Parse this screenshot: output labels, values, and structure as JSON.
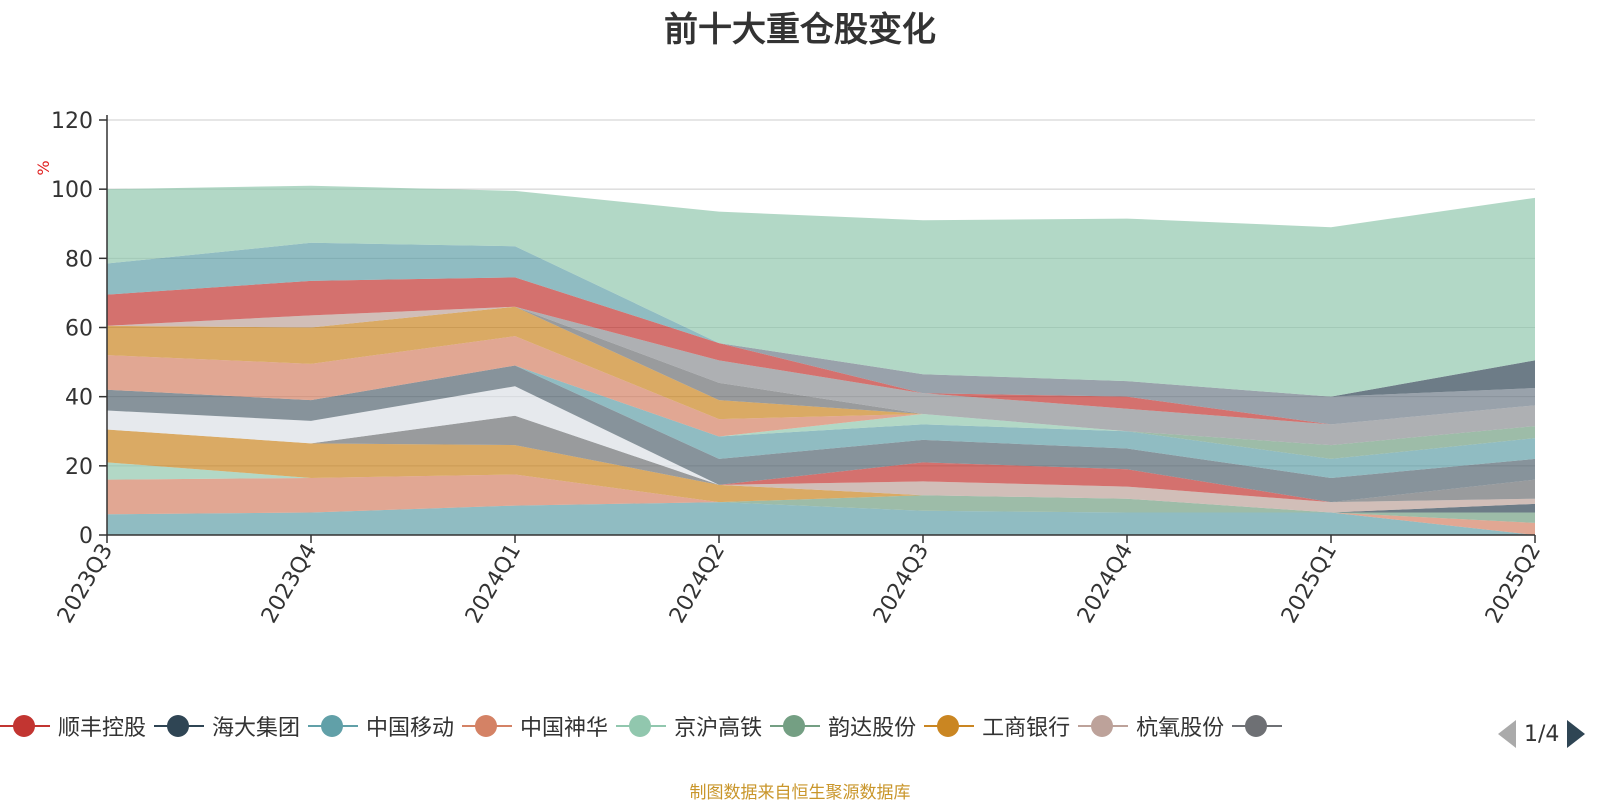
{
  "title": "前十大重仓股变化",
  "ylabel": "%",
  "source_text": "制图数据来自恒生聚源数据库",
  "pager": {
    "text": "1/4"
  },
  "legend": [
    {
      "name": "顺丰控股",
      "color": "#c23531"
    },
    {
      "name": "海大集团",
      "color": "#2f4554"
    },
    {
      "name": "中国移动",
      "color": "#61a0a8"
    },
    {
      "name": "中国神华",
      "color": "#d48265"
    },
    {
      "name": "京沪高铁",
      "color": "#91c7ae"
    },
    {
      "name": "韵达股份",
      "color": "#749f83"
    },
    {
      "name": "工商银行",
      "color": "#ca8622"
    },
    {
      "name": "杭氧股份",
      "color": "#bda29a"
    },
    {
      "name": "",
      "color": "#6e7074"
    }
  ],
  "chart_data": {
    "type": "area",
    "title": "前十大重仓股变化",
    "ylabel": "%",
    "xlabel": "",
    "ylim": [
      0,
      120
    ],
    "yticks": [
      0,
      20,
      40,
      60,
      80,
      100,
      120
    ],
    "categories": [
      "2023Q3",
      "2023Q4",
      "2024Q1",
      "2024Q2",
      "2024Q3",
      "2024Q4",
      "2025Q1",
      "2025Q2"
    ],
    "grid": true,
    "stacked": true,
    "series": [
      {
        "color": "#61a0a8",
        "values": [
          6,
          6.5,
          8.5,
          9.5,
          7,
          6.5,
          6.5,
          0
        ]
      },
      {
        "color": "#d48265",
        "values": [
          10,
          10,
          9,
          0,
          0,
          0,
          0,
          3.5
        ]
      },
      {
        "color": "#91c7ae",
        "values": [
          5,
          0,
          0,
          0,
          0,
          0,
          0,
          0
        ]
      },
      {
        "color": "#749f83",
        "values": [
          0,
          0,
          0,
          0,
          4.5,
          4,
          0,
          3
        ]
      },
      {
        "color": "#ca8622",
        "values": [
          9.5,
          10,
          8.5,
          5,
          0,
          0,
          0,
          0
        ]
      },
      {
        "color": "#2f4554",
        "values": [
          0,
          0,
          0,
          0,
          0,
          0,
          0,
          2.5
        ]
      },
      {
        "color": "#bda29a",
        "values": [
          0,
          0,
          0,
          0,
          4,
          3.5,
          3,
          1.5
        ]
      },
      {
        "color": "#6e7074",
        "values": [
          0,
          0,
          8.5,
          0,
          0,
          0,
          0,
          5.5
        ]
      },
      {
        "color": "#c23531",
        "values": [
          0,
          0,
          0,
          0,
          5.5,
          5,
          0,
          0
        ]
      },
      {
        "color": "#dcdfe6",
        "values": [
          5.5,
          6.5,
          8.5,
          0,
          0,
          0,
          0,
          0
        ]
      },
      {
        "color": "#546570",
        "values": [
          6,
          6,
          6,
          7.5,
          6.5,
          6,
          7,
          6
        ]
      },
      {
        "color": "#61a0a8",
        "values": [
          0,
          0,
          0,
          6.5,
          4.5,
          5,
          5.5,
          6
        ]
      },
      {
        "color": "#91c7ae",
        "values": [
          0,
          0,
          0,
          0,
          3,
          0,
          0,
          0
        ]
      },
      {
        "color": "#749f83",
        "values": [
          0,
          0,
          0,
          0,
          0,
          0,
          4,
          3.5
        ]
      },
      {
        "color": "#d48265",
        "values": [
          10,
          10.5,
          8.5,
          5,
          0,
          0,
          0,
          0
        ]
      },
      {
        "color": "#ca8622",
        "values": [
          8.5,
          10.5,
          8.5,
          5.5,
          0,
          0,
          0,
          0
        ]
      },
      {
        "color": "#6e7074",
        "values": [
          0,
          0,
          0,
          5,
          0,
          0,
          0,
          0
        ]
      },
      {
        "color": "#bda29a",
        "values": [
          0,
          3.5,
          0,
          0,
          0,
          0,
          0,
          0
        ]
      },
      {
        "color": "#8b8e93",
        "values": [
          0,
          0,
          0,
          6.5,
          6,
          6.5,
          6,
          6
        ]
      },
      {
        "color": "#c23531",
        "values": [
          9,
          10,
          8.5,
          5,
          0,
          3.5,
          0,
          0
        ]
      },
      {
        "color": "#6e7b88",
        "values": [
          0,
          0,
          0,
          0,
          5.5,
          4.5,
          8,
          5
        ]
      },
      {
        "color": "#2f4554",
        "values": [
          0,
          0,
          0,
          0,
          0,
          0,
          0,
          8
        ]
      },
      {
        "color": "#61a0a8",
        "values": [
          9,
          11,
          9,
          0,
          0,
          0,
          0,
          0
        ]
      },
      {
        "color": "#91c7ae",
        "values": [
          21.5,
          16.5,
          16,
          38,
          44.5,
          47,
          49,
          47
        ]
      }
    ]
  }
}
